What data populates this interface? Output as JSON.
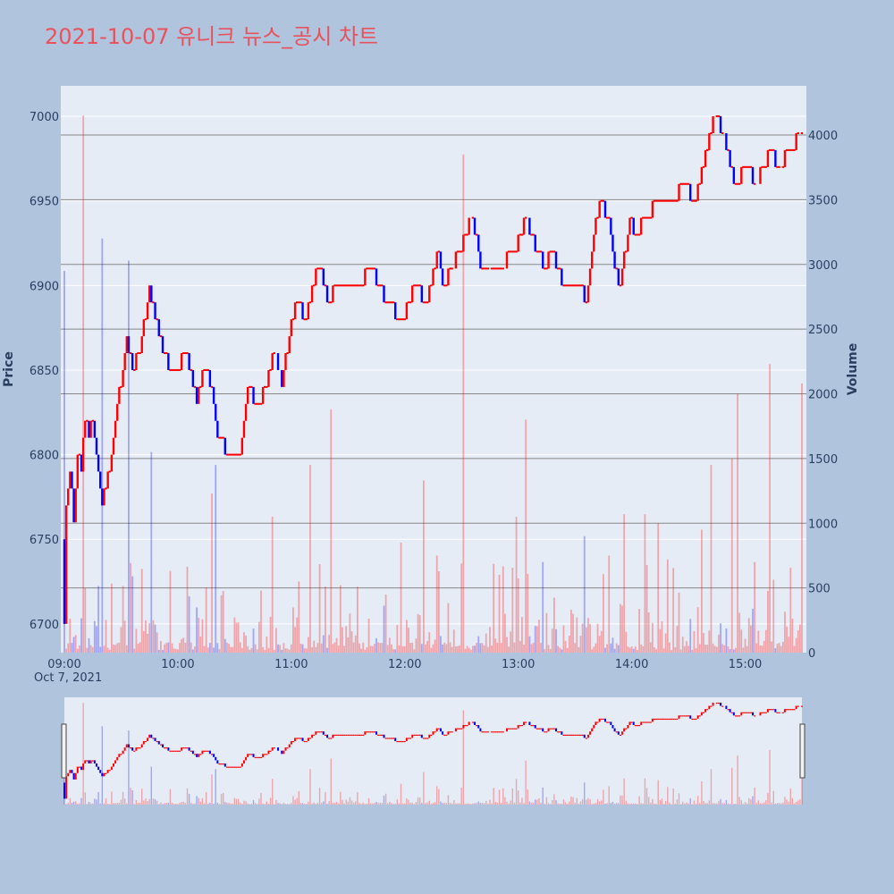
{
  "chart_data": {
    "type": "candlestick",
    "title": "2021-10-07 유니크 뉴스_공시 차트",
    "colors": {
      "title": "#e8525d",
      "increasing": "#ff0000",
      "decreasing": "#0000ff",
      "plot_background": "#e5ecf6",
      "paper_background": "#b0c4de",
      "secondary_grid": "#888888"
    },
    "x_axis": {
      "start_time": "09:00",
      "end_time": "15:30",
      "tick_labels": [
        "09:00",
        "10:00",
        "11:00",
        "12:00",
        "13:00",
        "14:00",
        "15:00"
      ],
      "date_label": "Oct 7, 2021"
    },
    "price_axis": {
      "title": "Price",
      "range": [
        6683,
        7018
      ],
      "tick_labels": [
        "6700",
        "6750",
        "6800",
        "6850",
        "6900",
        "6950",
        "7000"
      ]
    },
    "volume_axis": {
      "title": "Volume",
      "range": [
        0,
        4380
      ],
      "tick_labels": [
        "0",
        "500",
        "1000",
        "1500",
        "2000",
        "2500",
        "3000",
        "3500",
        "4000"
      ]
    },
    "rangeslider": true,
    "price_path": [
      [
        "09:00",
        6700
      ],
      [
        "09:01",
        6770
      ],
      [
        "09:03",
        6790
      ],
      [
        "09:05",
        6760
      ],
      [
        "09:07",
        6800
      ],
      [
        "09:09",
        6790
      ],
      [
        "09:11",
        6820
      ],
      [
        "09:13",
        6810
      ],
      [
        "09:15",
        6820
      ],
      [
        "09:18",
        6790
      ],
      [
        "09:20",
        6770
      ],
      [
        "09:24",
        6790
      ],
      [
        "09:28",
        6830
      ],
      [
        "09:30",
        6840
      ],
      [
        "09:33",
        6870
      ],
      [
        "09:36",
        6850
      ],
      [
        "09:40",
        6860
      ],
      [
        "09:45",
        6900
      ],
      [
        "09:48",
        6880
      ],
      [
        "09:52",
        6860
      ],
      [
        "09:56",
        6850
      ],
      [
        "10:00",
        6850
      ],
      [
        "10:03",
        6860
      ],
      [
        "10:07",
        6850
      ],
      [
        "10:10",
        6830
      ],
      [
        "10:14",
        6850
      ],
      [
        "10:18",
        6840
      ],
      [
        "10:21",
        6810
      ],
      [
        "10:27",
        6800
      ],
      [
        "10:33",
        6800
      ],
      [
        "10:37",
        6840
      ],
      [
        "10:42",
        6830
      ],
      [
        "10:47",
        6840
      ],
      [
        "10:51",
        6860
      ],
      [
        "10:55",
        6840
      ],
      [
        "10:59",
        6870
      ],
      [
        "11:00",
        6880
      ],
      [
        "11:03",
        6890
      ],
      [
        "11:08",
        6880
      ],
      [
        "11:11",
        6900
      ],
      [
        "11:15",
        6910
      ],
      [
        "11:19",
        6890
      ],
      [
        "11:25",
        6900
      ],
      [
        "11:35",
        6900
      ],
      [
        "11:42",
        6910
      ],
      [
        "11:50",
        6890
      ],
      [
        "11:59",
        6880
      ],
      [
        "12:05",
        6900
      ],
      [
        "12:11",
        6890
      ],
      [
        "12:16",
        6910
      ],
      [
        "12:18",
        6920
      ],
      [
        "12:20",
        6900
      ],
      [
        "12:25",
        6910
      ],
      [
        "12:32",
        6930
      ],
      [
        "12:36",
        6940
      ],
      [
        "12:40",
        6910
      ],
      [
        "12:50",
        6910
      ],
      [
        "12:58",
        6920
      ],
      [
        "13:04",
        6940
      ],
      [
        "13:07",
        6930
      ],
      [
        "13:14",
        6910
      ],
      [
        "13:18",
        6920
      ],
      [
        "13:24",
        6900
      ],
      [
        "13:32",
        6900
      ],
      [
        "13:36",
        6890
      ],
      [
        "13:40",
        6930
      ],
      [
        "13:43",
        6950
      ],
      [
        "13:48",
        6940
      ],
      [
        "13:51",
        6910
      ],
      [
        "13:54",
        6900
      ],
      [
        "13:59",
        6940
      ],
      [
        "14:01",
        6930
      ],
      [
        "14:08",
        6940
      ],
      [
        "14:14",
        6950
      ],
      [
        "14:22",
        6950
      ],
      [
        "14:27",
        6960
      ],
      [
        "14:33",
        6950
      ],
      [
        "14:38",
        6970
      ],
      [
        "14:40",
        6980
      ],
      [
        "14:44",
        7000
      ],
      [
        "14:49",
        6990
      ],
      [
        "14:52",
        6970
      ],
      [
        "14:55",
        6960
      ],
      [
        "15:00",
        6970
      ],
      [
        "15:06",
        6960
      ],
      [
        "15:10",
        6970
      ],
      [
        "15:14",
        6980
      ],
      [
        "15:17",
        6970
      ],
      [
        "15:30",
        6990
      ]
    ],
    "volume_spikes": [
      [
        "09:00",
        2950
      ],
      [
        "09:10",
        4150
      ],
      [
        "09:20",
        3200
      ],
      [
        "09:34",
        3030
      ],
      [
        "09:46",
        1550
      ],
      [
        "10:18",
        1230
      ],
      [
        "10:20",
        1450
      ],
      [
        "10:44",
        480
      ],
      [
        "10:50",
        1050
      ],
      [
        "11:04",
        550
      ],
      [
        "11:10",
        1450
      ],
      [
        "11:21",
        1880
      ],
      [
        "11:26",
        520
      ],
      [
        "11:58",
        850
      ],
      [
        "12:10",
        1330
      ],
      [
        "12:17",
        750
      ],
      [
        "12:31",
        3850
      ],
      [
        "12:59",
        1050
      ],
      [
        "13:04",
        1800
      ],
      [
        "13:13",
        700
      ],
      [
        "13:35",
        900
      ],
      [
        "13:48",
        750
      ],
      [
        "13:56",
        1070
      ],
      [
        "14:07",
        1070
      ],
      [
        "14:14",
        1000
      ],
      [
        "14:19",
        720
      ],
      [
        "14:37",
        950
      ],
      [
        "14:42",
        1450
      ],
      [
        "14:53",
        1500
      ],
      [
        "14:56",
        2000
      ],
      [
        "15:05",
        700
      ],
      [
        "15:13",
        2230
      ],
      [
        "15:30",
        2080
      ]
    ]
  }
}
